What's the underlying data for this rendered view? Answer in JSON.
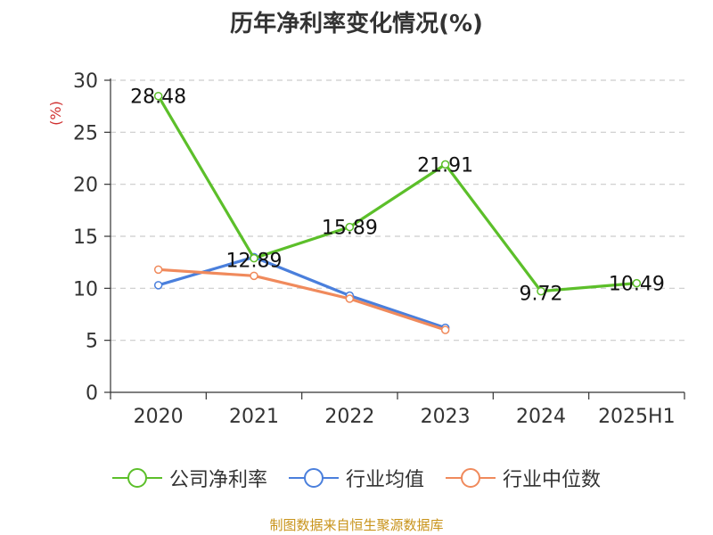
{
  "chart_data": {
    "type": "line",
    "title": "历年净利率变化情况(%)",
    "ylabel": "(%)",
    "ylim": [
      0,
      30
    ],
    "yticks": [
      0,
      5,
      10,
      15,
      20,
      25,
      30
    ],
    "categories": [
      "2020",
      "2021",
      "2022",
      "2023",
      "2024",
      "2025H1"
    ],
    "grid": true,
    "legend_position": "bottom",
    "series": [
      {
        "name": "公司净利率",
        "color": "#5cbf2a",
        "values": [
          28.48,
          12.89,
          15.89,
          21.91,
          9.72,
          10.49
        ],
        "labels": [
          "28.48",
          "12.89",
          "15.89",
          "21.91",
          "9.72",
          "10.49"
        ]
      },
      {
        "name": "行业均值",
        "color": "#4a7fdc",
        "values": [
          10.3,
          13.0,
          9.3,
          6.2,
          null,
          null
        ]
      },
      {
        "name": "行业中位数",
        "color": "#f08a5c",
        "values": [
          11.8,
          11.2,
          9.0,
          6.0,
          null,
          null
        ]
      }
    ],
    "source": "制图数据来自恒生聚源数据库"
  }
}
